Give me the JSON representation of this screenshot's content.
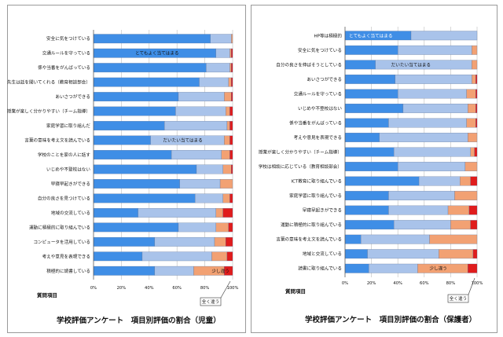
{
  "colors": {
    "very_true": "#3f8ee6",
    "somewhat_true": "#a9c3ea",
    "somewhat_false": "#f2a173",
    "not_at_all": "#e01c1c",
    "grid": "#bdbdbd"
  },
  "chart_data": [
    {
      "type": "bar",
      "orientation": "horizontal",
      "stacked": true,
      "title": "学校評価アンケート　項目別評価の割合（児童）",
      "ylabel": "質問項目",
      "xlim": [
        0,
        100
      ],
      "xticks": [
        "0%",
        "20%",
        "40%",
        "60%",
        "80%",
        "100%"
      ],
      "categories": [
        "安全に気をつけている",
        "交通ルールを守っている",
        "係や当番をがんばっている",
        "先生は話を聞いてくれる（教育相談部会）",
        "あいさつができる",
        "授業が楽しく分かりやすい（チーム指導）",
        "家庭学習に取り組んだ",
        "言葉の意味を考え文を読んでいる",
        "学校のことを家の人に話す",
        "いじめや不登校はない",
        "早寝早起きができる",
        "自分の良さを見つけている",
        "地域の交流している",
        "運動に積極的に取り組んでいる",
        "コンピュータを活用している",
        "考えや意見を表現できる",
        "積極的に読書している"
      ],
      "series": [
        {
          "name": "とてもよく当てはまる",
          "values": [
            84,
            88,
            81,
            76,
            61,
            59,
            51,
            41,
            56,
            74,
            62,
            73,
            32,
            61,
            44,
            35,
            44
          ]
        },
        {
          "name": "だいたい当てはまる",
          "values": [
            15,
            10,
            17,
            21,
            33,
            36,
            45,
            53,
            36,
            19,
            29,
            20,
            56,
            27,
            43,
            50,
            28
          ]
        },
        {
          "name": "少し違う",
          "values": [
            1,
            1,
            1,
            2,
            5,
            3,
            2,
            4,
            6,
            6,
            9,
            5,
            5,
            9,
            8,
            11,
            22
          ]
        },
        {
          "name": "全く違う",
          "values": [
            0,
            1,
            1,
            1,
            1,
            2,
            2,
            2,
            2,
            1,
            0,
            2,
            7,
            3,
            5,
            4,
            6
          ]
        }
      ]
    },
    {
      "type": "bar",
      "orientation": "horizontal",
      "stacked": true,
      "title": "学校評価アンケート　項目別評価の割合（保護者）",
      "ylabel": "質問項目",
      "xlim": [
        0,
        100
      ],
      "xticks": [
        "0%",
        "20%",
        "40%",
        "60%",
        "80%",
        "100%"
      ],
      "categories": [
        "HP等は積極的",
        "安全に気をつけている",
        "自分の良さを伸ばそうとしている",
        "あいさつができる",
        "交通ルールを守っている",
        "いじめや不登校はない",
        "係や当番をがんばっている",
        "考えや意見を表現できる",
        "授業が楽しく分かりやすい（チーム指導）",
        "学校は相談に応じている（教育相談部会）",
        "ICT教育に取り組んでいる",
        "家庭学習に取り組んでいる",
        "早寝早起きができる",
        "運動に積極的に取り組んでいる",
        "言葉の意味を考え文を読んでいる",
        "地域と交流している",
        "読書に取り組んでいる"
      ],
      "series": [
        {
          "name": "とてもよく当てはまる",
          "values": [
            50,
            40,
            23,
            38,
            40,
            44,
            33,
            26,
            37,
            40,
            56,
            33,
            33,
            37,
            12,
            17,
            18
          ]
        },
        {
          "name": "だいたい当てはまる",
          "values": [
            50,
            56,
            73,
            58,
            52,
            49,
            59,
            67,
            58,
            51,
            31,
            50,
            45,
            43,
            52,
            54,
            37
          ]
        },
        {
          "name": "少し違う",
          "values": [
            0,
            4,
            4,
            3,
            7,
            6,
            7,
            7,
            3,
            9,
            8,
            17,
            16,
            15,
            36,
            26,
            38
          ]
        },
        {
          "name": "全く違う",
          "values": [
            0,
            0,
            0,
            1,
            1,
            1,
            1,
            0,
            2,
            0,
            5,
            0,
            6,
            5,
            0,
            3,
            7
          ]
        }
      ],
      "annotations": [
        "とてもよく当てはまる",
        "だいたい当てはまる",
        "少し違う",
        "全く違う"
      ]
    }
  ],
  "left_annotations": {
    "very_true": "とてもよく当てはまる",
    "somewhat_true": "だいたい当てはまる",
    "somewhat_false": "少し違う",
    "not_at_all": "全く違う"
  },
  "right_annotations": {
    "very_true": "とてもよく当てはまる",
    "somewhat_true": "だいたい当てはまる",
    "somewhat_false": "少し違う",
    "not_at_all": "全く違う"
  }
}
